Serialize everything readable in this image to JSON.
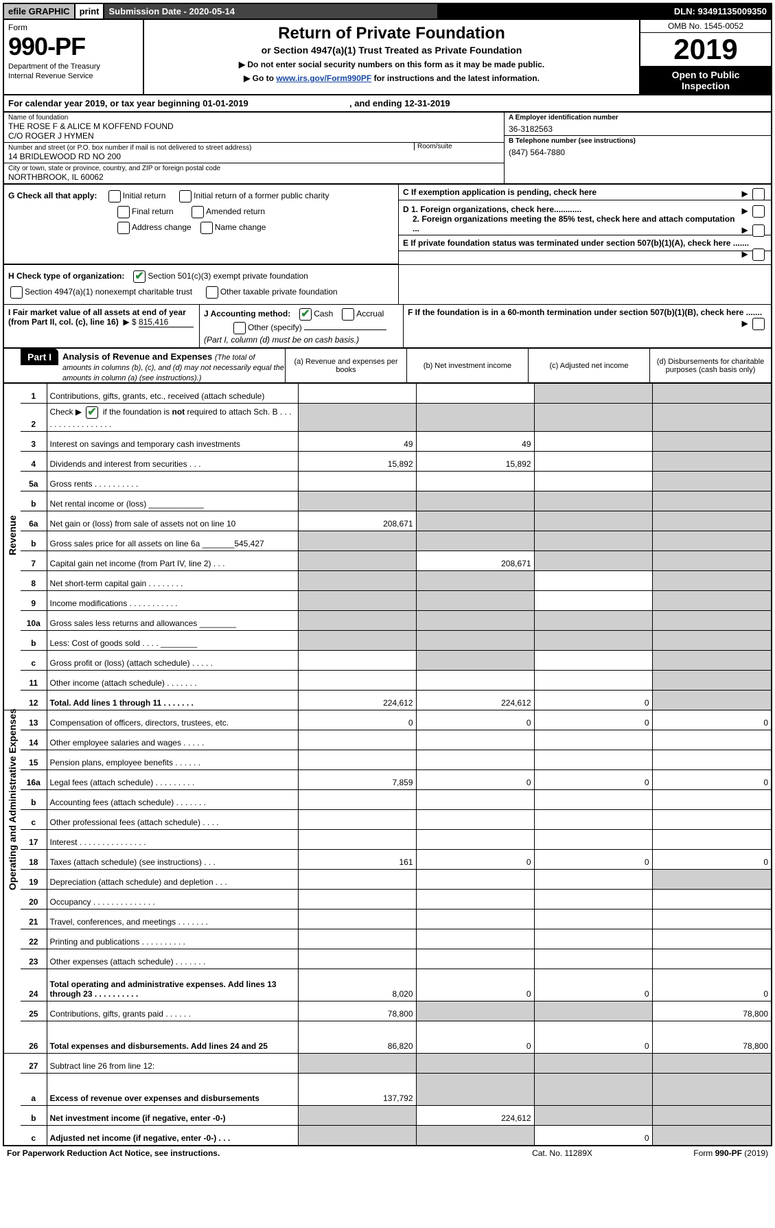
{
  "colors": {
    "headerGrey": "#c0c0c0",
    "headerDark": "#444444",
    "black": "#000000",
    "link": "#1a4aa3",
    "checkGreen": "#2e8b3d",
    "shade": "#cfcfcf"
  },
  "top": {
    "efile": "efile GRAPHIC",
    "print": "print",
    "subdate": "Submission Date - 2020-05-14",
    "dln": "DLN: 93491135009350"
  },
  "header": {
    "form": "Form",
    "formnum": "990-PF",
    "dept1": "Department of the Treasury",
    "dept2": "Internal Revenue Service",
    "title": "Return of Private Foundation",
    "subtitle": "or Section 4947(a)(1) Trust Treated as Private Foundation",
    "hint1": "▶ Do not enter social security numbers on this form as it may be made public.",
    "hint2_pre": "▶ Go to ",
    "hint2_link": "www.irs.gov/Form990PF",
    "hint2_post": " for instructions and the latest information.",
    "omb": "OMB No. 1545-0052",
    "year": "2019",
    "open1": "Open to Public",
    "open2": "Inspection"
  },
  "calrow": {
    "pre": "For calendar year 2019, or tax year beginning ",
    "begin": "01-01-2019",
    "mid": ", and ending ",
    "end": "12-31-2019"
  },
  "idblock": {
    "name_lab": "Name of foundation",
    "name1": "THE ROSE F & ALICE M KOFFEND FOUND",
    "name2": "C/O ROGER J HYMEN",
    "addr_lab": "Number and street (or P.O. box number if mail is not delivered to street address)",
    "room_lab": "Room/suite",
    "addr": "14 BRIDLEWOOD RD NO 200",
    "city_lab": "City or town, state or province, country, and ZIP or foreign postal code",
    "city": "NORTHBROOK, IL  60062",
    "A_lab": "A Employer identification number",
    "A_val": "36-3182563",
    "B_lab": "B Telephone number (see instructions)",
    "B_val": "(847) 564-7880",
    "C_lab": "C If exemption application is pending, check here",
    "D1": "D 1. Foreign organizations, check here............",
    "D2": "2. Foreign organizations meeting the 85% test, check here and attach computation ...",
    "E": "E  If private foundation status was terminated under section 507(b)(1)(A), check here .......",
    "F": "F  If the foundation is in a 60-month termination under section 507(b)(1)(B), check here ......."
  },
  "G": {
    "lab": "G Check all that apply:",
    "o1": "Initial return",
    "o2": "Initial return of a former public charity",
    "o3": "Final return",
    "o4": "Amended return",
    "o5": "Address change",
    "o6": "Name change"
  },
  "H": {
    "lab": "H Check type of organization:",
    "o1": "Section 501(c)(3) exempt private foundation",
    "o2": "Section 4947(a)(1) nonexempt charitable trust",
    "o3": "Other taxable private foundation"
  },
  "I": {
    "lab": "I Fair market value of all assets at end of year (from Part II, col. (c), line 16)",
    "val": "815,416"
  },
  "J": {
    "lab": "J Accounting method:",
    "o1": "Cash",
    "o2": "Accrual",
    "o3": "Other (specify)",
    "note": "(Part I, column (d) must be on cash basis.)"
  },
  "part1": {
    "tab": "Part I",
    "title": "Analysis of Revenue and Expenses",
    "note": "(The total of amounts in columns (b), (c), and (d) may not necessarily equal the amounts in column (a) (see instructions).)",
    "col_a": "(a)   Revenue and expenses per books",
    "col_b": "(b)   Net investment income",
    "col_c": "(c)   Adjusted net income",
    "col_d": "(d)   Disbursements for charitable purposes (cash basis only)"
  },
  "sections": {
    "revenue": "Revenue",
    "opex": "Operating and Administrative Expenses"
  },
  "rows": [
    {
      "n": "1",
      "t": "Contributions, gifts, grants, etc., received (attach schedule)",
      "a": "",
      "b": "",
      "c": "s",
      "d": "s"
    },
    {
      "n": "2",
      "t": "Check ▶ [x] if the foundation is not required to attach Sch. B",
      "a": "s",
      "b": "s",
      "c": "s",
      "d": "s",
      "special": "check"
    },
    {
      "n": "3",
      "t": "Interest on savings and temporary cash investments",
      "a": "49",
      "b": "49",
      "c": "",
      "d": "s"
    },
    {
      "n": "4",
      "t": "Dividends and interest from securities    .   .   .",
      "a": "15,892",
      "b": "15,892",
      "c": "",
      "d": "s"
    },
    {
      "n": "5a",
      "t": "Gross rents",
      "a": "",
      "b": "",
      "c": "",
      "d": "s",
      "dots": true
    },
    {
      "n": "b",
      "t": "Net rental income or (loss)   ____________",
      "a": "s",
      "b": "s",
      "c": "s",
      "d": "s"
    },
    {
      "n": "6a",
      "t": "Net gain or (loss) from sale of assets not on line 10",
      "a": "208,671",
      "b": "s",
      "c": "s",
      "d": "s"
    },
    {
      "n": "b",
      "t": "Gross sales price for all assets on line 6a _______545,427",
      "a": "s",
      "b": "s",
      "c": "s",
      "d": "s"
    },
    {
      "n": "7",
      "t": "Capital gain net income (from Part IV, line 2)    .   .   .",
      "a": "s",
      "b": "208,671",
      "c": "s",
      "d": "s"
    },
    {
      "n": "8",
      "t": "Net short-term capital gain   .   .   .   .   .   .   .   .",
      "a": "s",
      "b": "s",
      "c": "",
      "d": "s"
    },
    {
      "n": "9",
      "t": "Income modifications  .   .   .   .   .   .   .   .   .   .   .",
      "a": "s",
      "b": "s",
      "c": "",
      "d": "s"
    },
    {
      "n": "10a",
      "t": "Gross sales less returns and allowances  ________",
      "a": "s",
      "b": "s",
      "c": "s",
      "d": "s"
    },
    {
      "n": "b",
      "t": "Less: Cost of goods sold      .   .   .   .  ________",
      "a": "s",
      "b": "s",
      "c": "s",
      "d": "s"
    },
    {
      "n": "c",
      "t": "Gross profit or (loss) (attach schedule)    .   .   .   .   .",
      "a": "",
      "b": "s",
      "c": "",
      "d": "s"
    },
    {
      "n": "11",
      "t": "Other income (attach schedule)    .   .   .   .   .   .   .",
      "a": "",
      "b": "",
      "c": "",
      "d": "s"
    },
    {
      "n": "12",
      "t": "Total. Add lines 1 through 11    .   .   .   .   .   .   .",
      "a": "224,612",
      "b": "224,612",
      "c": "0",
      "d": "s",
      "bold": true
    }
  ],
  "rows2": [
    {
      "n": "13",
      "t": "Compensation of officers, directors, trustees, etc.",
      "a": "0",
      "b": "0",
      "c": "0",
      "d": "0"
    },
    {
      "n": "14",
      "t": "Other employee salaries and wages    .   .   .   .   .",
      "a": "",
      "b": "",
      "c": "",
      "d": ""
    },
    {
      "n": "15",
      "t": "Pension plans, employee benefits   .   .   .   .   .   .",
      "a": "",
      "b": "",
      "c": "",
      "d": ""
    },
    {
      "n": "16a",
      "t": "Legal fees (attach schedule) .   .   .   .   .   .   .   .   .",
      "a": "7,859",
      "b": "0",
      "c": "0",
      "d": "0"
    },
    {
      "n": "b",
      "t": "Accounting fees (attach schedule)  .   .   .   .   .   .   .",
      "a": "",
      "b": "",
      "c": "",
      "d": ""
    },
    {
      "n": "c",
      "t": "Other professional fees (attach schedule)    .   .   .   .",
      "a": "",
      "b": "",
      "c": "",
      "d": ""
    },
    {
      "n": "17",
      "t": "Interest   .   .   .   .   .   .   .   .   .   .   .   .   .   .   .",
      "a": "",
      "b": "",
      "c": "",
      "d": ""
    },
    {
      "n": "18",
      "t": "Taxes (attach schedule) (see instructions)    .   .   .",
      "a": "161",
      "b": "0",
      "c": "0",
      "d": "0"
    },
    {
      "n": "19",
      "t": "Depreciation (attach schedule) and depletion    .   .   .",
      "a": "",
      "b": "",
      "c": "",
      "d": "s"
    },
    {
      "n": "20",
      "t": "Occupancy  .   .   .   .   .   .   .   .   .   .   .   .   .   .",
      "a": "",
      "b": "",
      "c": "",
      "d": ""
    },
    {
      "n": "21",
      "t": "Travel, conferences, and meetings  .   .   .   .   .   .   .",
      "a": "",
      "b": "",
      "c": "",
      "d": ""
    },
    {
      "n": "22",
      "t": "Printing and publications  .   .   .   .   .   .   .   .   .   .",
      "a": "",
      "b": "",
      "c": "",
      "d": ""
    },
    {
      "n": "23",
      "t": "Other expenses (attach schedule)   .   .   .   .   .   .   .",
      "a": "",
      "b": "",
      "c": "",
      "d": ""
    },
    {
      "n": "24",
      "t": "Total operating and administrative expenses. Add lines 13 through 23   .   .   .   .   .   .   .   .   .   .",
      "a": "8,020",
      "b": "0",
      "c": "0",
      "d": "0",
      "bold": true,
      "tall": true
    },
    {
      "n": "25",
      "t": "Contributions, gifts, grants paid      .   .   .   .   .   .",
      "a": "78,800",
      "b": "s",
      "c": "s",
      "d": "78,800"
    },
    {
      "n": "26",
      "t": "Total expenses and disbursements. Add lines 24 and 25",
      "a": "86,820",
      "b": "0",
      "c": "0",
      "d": "78,800",
      "bold": true,
      "tall": true
    }
  ],
  "rows3": [
    {
      "n": "27",
      "t": "Subtract line 26 from line 12:",
      "a": "s",
      "b": "s",
      "c": "s",
      "d": "s"
    },
    {
      "n": "a",
      "t": "Excess of revenue over expenses and disbursements",
      "a": "137,792",
      "b": "s",
      "c": "s",
      "d": "s",
      "bold": true,
      "tall": true
    },
    {
      "n": "b",
      "t": "Net investment income (if negative, enter -0-)",
      "a": "s",
      "b": "224,612",
      "c": "s",
      "d": "s",
      "bold": true
    },
    {
      "n": "c",
      "t": "Adjusted net income (if negative, enter -0-)    .   .   .",
      "a": "s",
      "b": "s",
      "c": "0",
      "d": "s",
      "bold": true
    }
  ],
  "footer": {
    "left": "For Paperwork Reduction Act Notice, see instructions.",
    "mid": "Cat. No. 11289X",
    "right": "Form 990-PF (2019)"
  }
}
